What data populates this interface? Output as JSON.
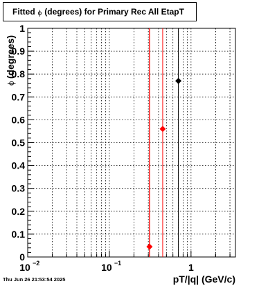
{
  "title": {
    "prefix": "Fitted",
    "symbol": "ϕ",
    "suffix": "(degrees) for Primary Rec All EtapT"
  },
  "timestamp": "Thu Jun 26 21:53:54 2025",
  "colors": {
    "red": "#ff0000",
    "black": "#000000"
  },
  "chart_data": {
    "type": "scatter",
    "title": "Fitted ϕ (degrees) for Primary Rec All EtapT",
    "xlabel": "pT/|q| (GeV/c)",
    "ylabel": "ϕ (degrees)",
    "ylabel_symbol": "ϕ",
    "ylabel_text": "(degrees)",
    "xscale": "log",
    "xlim": [
      0.01,
      3.5
    ],
    "ylim": [
      0,
      1
    ],
    "grid": true,
    "x_ticks": [
      {
        "value": 0.01,
        "base": "10",
        "exp": "−2"
      },
      {
        "value": 0.1,
        "base": "10",
        "exp": "−1"
      },
      {
        "value": 1,
        "base": "1",
        "exp": ""
      }
    ],
    "y_ticks": [
      {
        "value": 0,
        "label": "0"
      },
      {
        "value": 0.1,
        "label": "0.1"
      },
      {
        "value": 0.2,
        "label": "0.2"
      },
      {
        "value": 0.3,
        "label": "0.3"
      },
      {
        "value": 0.4,
        "label": "0.4"
      },
      {
        "value": 0.5,
        "label": "0.5"
      },
      {
        "value": 0.6,
        "label": "0.6"
      },
      {
        "value": 0.7,
        "label": "0.7"
      },
      {
        "value": 0.8,
        "label": "0.8"
      },
      {
        "value": 0.9,
        "label": "0.9"
      },
      {
        "value": 1,
        "label": "1"
      }
    ],
    "vertical_lines": [
      {
        "x": 0.31,
        "color": "#ff0000",
        "width": 1.3
      },
      {
        "x": 0.45,
        "color": "#ff0000",
        "width": 1
      },
      {
        "x": 0.7,
        "color": "#000000",
        "width": 1
      }
    ],
    "points": [
      {
        "x": 0.31,
        "y": 0.045,
        "color": "#ff0000"
      },
      {
        "x": 0.45,
        "y": 0.56,
        "color": "#ff0000"
      },
      {
        "x": 0.7,
        "y": 0.77,
        "color": "#000000"
      }
    ]
  }
}
